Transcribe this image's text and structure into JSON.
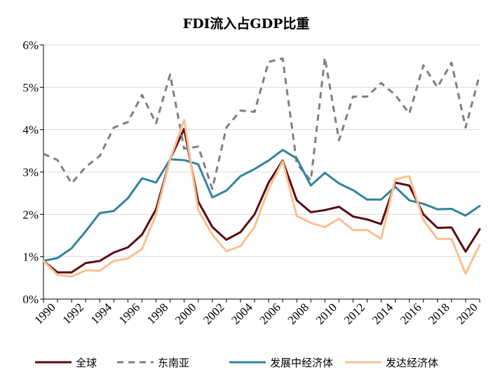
{
  "chart_data": {
    "type": "line",
    "title": "FDI流入占GDP比重",
    "xlabel": "",
    "ylabel": "",
    "x": [
      1990,
      1991,
      1992,
      1993,
      1994,
      1995,
      1996,
      1997,
      1998,
      1999,
      2000,
      2001,
      2002,
      2003,
      2004,
      2005,
      2006,
      2007,
      2008,
      2009,
      2010,
      2011,
      2012,
      2013,
      2014,
      2015,
      2016,
      2017,
      2018,
      2019,
      2020,
      2021
    ],
    "x_tick_labels": [
      "1990",
      "1992",
      "1994",
      "1996",
      "1998",
      "2000",
      "2002",
      "2004",
      "2006",
      "2008",
      "2010",
      "2012",
      "2014",
      "2016",
      "2018",
      "2020"
    ],
    "ylim": [
      0,
      6
    ],
    "y_ticks": [
      0,
      1,
      2,
      3,
      4,
      5,
      6
    ],
    "y_tick_labels": [
      "0%",
      "1%",
      "2%",
      "3%",
      "4%",
      "5%",
      "6%"
    ],
    "legend_position": "bottom",
    "series": [
      {
        "name": "全球",
        "color": "#5a0a0f",
        "dash": "solid",
        "values": [
          0.9,
          0.63,
          0.63,
          0.85,
          0.9,
          1.1,
          1.22,
          1.52,
          2.12,
          3.3,
          4.02,
          2.3,
          1.7,
          1.4,
          1.58,
          2.0,
          2.75,
          3.27,
          2.33,
          2.05,
          2.1,
          2.18,
          1.95,
          1.88,
          1.77,
          2.75,
          2.68,
          2.0,
          1.68,
          1.69,
          1.12,
          1.65
        ]
      },
      {
        "name": "东南亚",
        "color": "#7f7f7f",
        "dash": "dashed",
        "values": [
          3.43,
          3.28,
          2.73,
          3.12,
          3.38,
          4.05,
          4.18,
          4.82,
          4.15,
          5.3,
          3.55,
          3.6,
          2.6,
          4.05,
          4.45,
          4.42,
          5.6,
          5.68,
          3.2,
          2.8,
          5.7,
          3.75,
          4.78,
          4.78,
          5.1,
          4.82,
          4.38,
          5.52,
          5.0,
          5.58,
          4.05,
          5.3
        ]
      },
      {
        "name": "发展中经济体",
        "color": "#31849b",
        "dash": "solid",
        "values": [
          0.9,
          0.97,
          1.2,
          1.6,
          2.03,
          2.08,
          2.38,
          2.85,
          2.75,
          3.3,
          3.28,
          3.18,
          2.4,
          2.56,
          2.9,
          3.07,
          3.27,
          3.52,
          3.32,
          2.68,
          2.98,
          2.73,
          2.57,
          2.35,
          2.35,
          2.65,
          2.33,
          2.25,
          2.12,
          2.13,
          1.97,
          2.2
        ]
      },
      {
        "name": "发达经济体",
        "color": "#fac090",
        "dash": "solid",
        "values": [
          0.9,
          0.57,
          0.53,
          0.68,
          0.67,
          0.9,
          0.96,
          1.18,
          2.0,
          3.3,
          4.23,
          2.1,
          1.52,
          1.13,
          1.25,
          1.7,
          2.6,
          3.25,
          1.96,
          1.8,
          1.7,
          1.9,
          1.63,
          1.63,
          1.42,
          2.83,
          2.9,
          1.86,
          1.42,
          1.42,
          0.6,
          1.28
        ]
      }
    ]
  }
}
